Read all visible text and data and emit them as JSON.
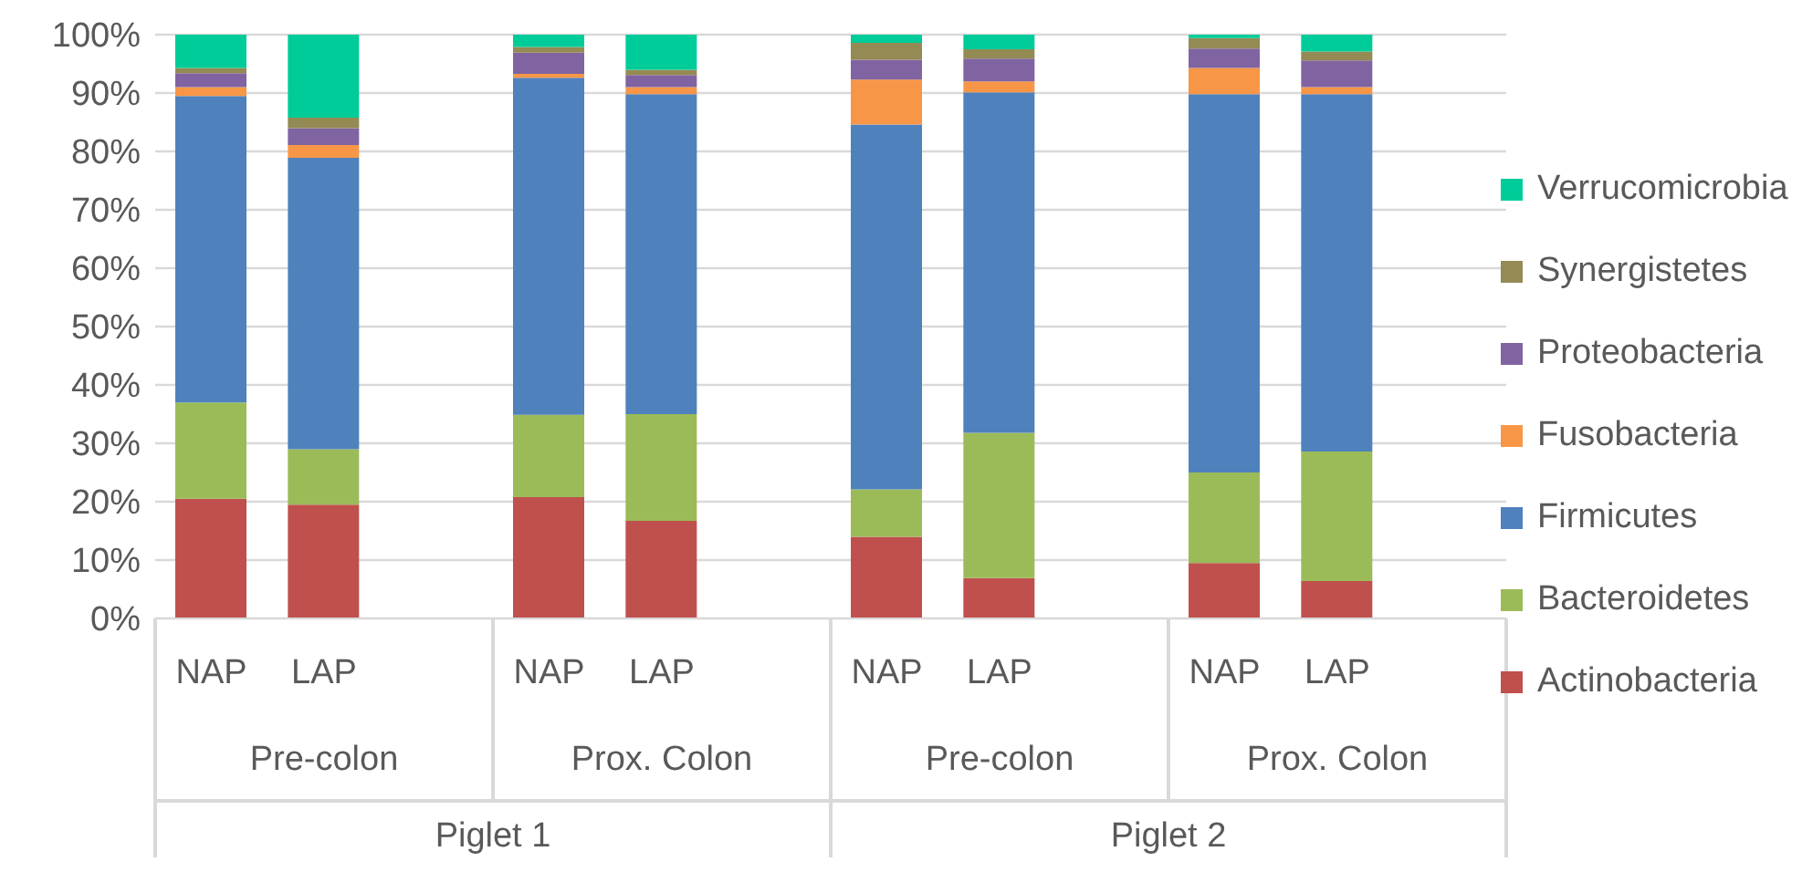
{
  "chart_data": {
    "type": "bar",
    "stacked": true,
    "categories": [
      "NAP",
      "LAP",
      null,
      "NAP",
      "LAP",
      null,
      "NAP",
      "LAP",
      null,
      "NAP",
      "LAP",
      null
    ],
    "annotations": [
      "Pre-colon",
      "Prox. Colon",
      "Pre-colon",
      "Prox. Colon",
      "Piglet 1",
      "Piglet 2"
    ],
    "series": [
      {
        "name": "Actinobacteria",
        "color": "#c0504d",
        "values": [
          20.5,
          19.5,
          null,
          20.8,
          16.7,
          null,
          14.0,
          6.9,
          null,
          9.5,
          6.4,
          null
        ]
      },
      {
        "name": "Bacteroidetes",
        "color": "#9bbb59",
        "values": [
          16.5,
          9.5,
          null,
          14.1,
          18.3,
          null,
          8.1,
          24.9,
          null,
          15.5,
          22.2,
          null
        ]
      },
      {
        "name": "Firmicutes",
        "color": "#4f81bd",
        "values": [
          52.5,
          49.9,
          null,
          57.7,
          54.8,
          null,
          62.5,
          58.3,
          null,
          64.8,
          61.2,
          null
        ]
      },
      {
        "name": "Fusobacteria",
        "color": "#f79646",
        "values": [
          1.5,
          2.2,
          null,
          0.7,
          1.2,
          null,
          7.7,
          1.9,
          null,
          4.5,
          1.2,
          null
        ]
      },
      {
        "name": "Proteobacteria",
        "color": "#8064a2",
        "values": [
          2.4,
          2.9,
          null,
          3.6,
          2.1,
          null,
          3.4,
          3.9,
          null,
          3.3,
          4.6,
          null
        ]
      },
      {
        "name": "Synergistetes",
        "color": "#948a54",
        "values": [
          0.9,
          1.8,
          null,
          1.0,
          0.9,
          null,
          2.9,
          1.6,
          null,
          1.8,
          1.5,
          null
        ]
      },
      {
        "name": "Verrucomicrobia",
        "color": "#00cc99",
        "values": [
          5.7,
          14.2,
          null,
          2.1,
          6.0,
          null,
          1.4,
          2.5,
          null,
          0.6,
          2.9,
          null
        ]
      }
    ],
    "ylim": [
      0,
      100
    ],
    "yticks": [
      {
        "value": 0,
        "label": "0%"
      },
      {
        "value": 10,
        "label": "10%"
      },
      {
        "value": 20,
        "label": "20%"
      },
      {
        "value": 30,
        "label": "30%"
      },
      {
        "value": 40,
        "label": "40%"
      },
      {
        "value": 50,
        "label": "50%"
      },
      {
        "value": 60,
        "label": "60%"
      },
      {
        "value": 70,
        "label": "70%"
      },
      {
        "value": 80,
        "label": "80%"
      },
      {
        "value": 90,
        "label": "90%"
      },
      {
        "value": 100,
        "label": "100%"
      }
    ],
    "grid": "y",
    "legend": "right"
  }
}
